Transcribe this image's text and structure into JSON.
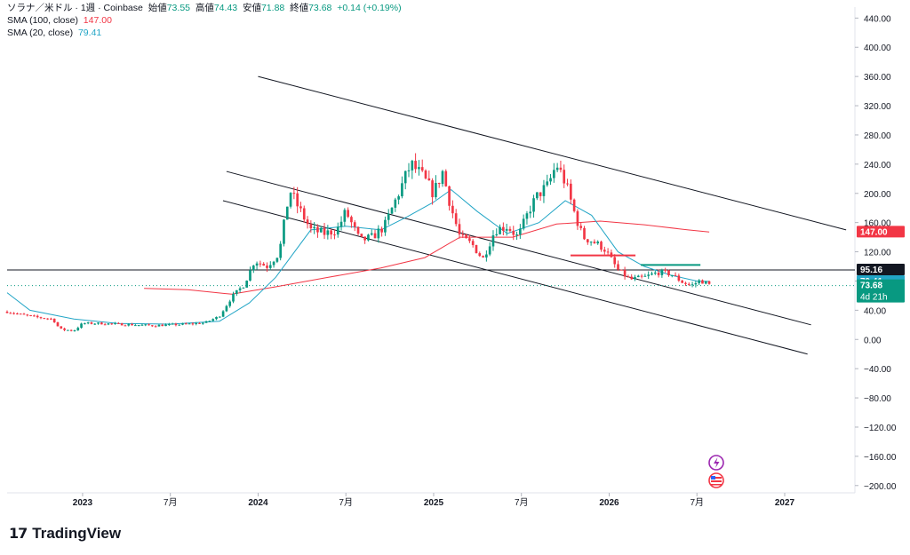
{
  "legend": {
    "symbol": "ソラナ／米ドル · 1週 · Coinbase",
    "open_label": "始値",
    "open": "73.55",
    "high_label": "高値",
    "high": "74.43",
    "low_label": "安値",
    "low": "71.88",
    "close_label": "終値",
    "close": "73.68",
    "change": "+0.14 (+0.19%)",
    "sma100_label": "SMA (100, close)",
    "sma100_value": "147.00",
    "sma20_label": "SMA (20, close)",
    "sma20_value": "79.41"
  },
  "brand": {
    "name": "TradingView"
  },
  "colors": {
    "up": "#089981",
    "down": "#f23645",
    "sma100": "#f23645",
    "sma20": "#22a5c6",
    "channel": "#131722"
  },
  "chart_data": {
    "type": "candlestick",
    "symbol": "ソラナ／米ドル",
    "interval": "1週",
    "exchange": "Coinbase",
    "y_ticks": [
      "440.00",
      "400.00",
      "360.00",
      "320.00",
      "280.00",
      "240.00",
      "200.00",
      "160.00",
      "120.00",
      "80.00",
      "40.00",
      "0.00",
      "−40.00",
      "−80.00",
      "−120.00",
      "−160.00",
      "−200.00"
    ],
    "y_tick_values": [
      440,
      400,
      360,
      320,
      280,
      240,
      200,
      160,
      120,
      80,
      40,
      0,
      -40,
      -80,
      -120,
      -160,
      -200
    ],
    "ylim": [
      -210,
      455
    ],
    "x_ticks": [
      {
        "label": "2023",
        "t": 2023.0
      },
      {
        "label": "7月",
        "t": 2023.5
      },
      {
        "label": "2024",
        "t": 2024.0
      },
      {
        "label": "7月",
        "t": 2024.5
      },
      {
        "label": "2025",
        "t": 2025.0
      },
      {
        "label": "7月",
        "t": 2025.5
      },
      {
        "label": "2026",
        "t": 2026.0
      },
      {
        "label": "7月",
        "t": 2026.5
      },
      {
        "label": "2027",
        "t": 2027.0
      }
    ],
    "xlim": [
      2022.57,
      2027.4
    ],
    "price_path": [
      [
        2022.57,
        38
      ],
      [
        2022.65,
        34
      ],
      [
        2022.75,
        30
      ],
      [
        2022.83,
        28
      ],
      [
        2022.87,
        14
      ],
      [
        2022.95,
        12
      ],
      [
        2023.0,
        22
      ],
      [
        2023.1,
        22
      ],
      [
        2023.2,
        21
      ],
      [
        2023.3,
        20
      ],
      [
        2023.4,
        19
      ],
      [
        2023.5,
        20
      ],
      [
        2023.6,
        21
      ],
      [
        2023.7,
        23
      ],
      [
        2023.78,
        32
      ],
      [
        2023.85,
        58
      ],
      [
        2023.92,
        75
      ],
      [
        2023.98,
        108
      ],
      [
        2024.05,
        100
      ],
      [
        2024.12,
        118
      ],
      [
        2024.18,
        205
      ],
      [
        2024.22,
        185
      ],
      [
        2024.3,
        150
      ],
      [
        2024.38,
        145
      ],
      [
        2024.45,
        150
      ],
      [
        2024.5,
        175
      ],
      [
        2024.58,
        135
      ],
      [
        2024.65,
        140
      ],
      [
        2024.72,
        155
      ],
      [
        2024.8,
        200
      ],
      [
        2024.87,
        240
      ],
      [
        2024.93,
        225
      ],
      [
        2025.0,
        200
      ],
      [
        2025.05,
        230
      ],
      [
        2025.1,
        180
      ],
      [
        2025.15,
        140
      ],
      [
        2025.22,
        130
      ],
      [
        2025.28,
        110
      ],
      [
        2025.35,
        150
      ],
      [
        2025.42,
        155
      ],
      [
        2025.48,
        140
      ],
      [
        2025.55,
        180
      ],
      [
        2025.6,
        200
      ],
      [
        2025.65,
        210
      ],
      [
        2025.7,
        240
      ],
      [
        2025.75,
        215
      ],
      [
        2025.8,
        175
      ],
      [
        2025.85,
        140
      ],
      [
        2025.9,
        135
      ],
      [
        2025.97,
        125
      ],
      [
        2026.05,
        95
      ],
      [
        2026.12,
        82
      ],
      [
        2026.2,
        85
      ],
      [
        2026.28,
        92
      ],
      [
        2026.35,
        90
      ],
      [
        2026.42,
        78
      ],
      [
        2026.47,
        74
      ],
      [
        2026.52,
        81
      ],
      [
        2026.58,
        73.68
      ]
    ],
    "last_close": 73.68,
    "series": [
      {
        "name": "SMA (100, close)",
        "value": "147.00",
        "path": [
          [
            2023.35,
            70
          ],
          [
            2023.6,
            68
          ],
          [
            2023.85,
            62
          ],
          [
            2024.1,
            72
          ],
          [
            2024.4,
            85
          ],
          [
            2024.7,
            98
          ],
          [
            2024.95,
            112
          ],
          [
            2025.15,
            140
          ],
          [
            2025.45,
            140
          ],
          [
            2025.7,
            158
          ],
          [
            2025.95,
            162
          ],
          [
            2026.2,
            157
          ],
          [
            2026.45,
            150
          ],
          [
            2026.57,
            147
          ]
        ]
      },
      {
        "name": "SMA (20, close)",
        "value": "79.41",
        "path": [
          [
            2022.57,
            64
          ],
          [
            2022.7,
            40
          ],
          [
            2022.95,
            28
          ],
          [
            2023.2,
            22
          ],
          [
            2023.5,
            21
          ],
          [
            2023.78,
            25
          ],
          [
            2023.95,
            50
          ],
          [
            2024.1,
            85
          ],
          [
            2024.3,
            150
          ],
          [
            2024.5,
            155
          ],
          [
            2024.7,
            150
          ],
          [
            2024.85,
            168
          ],
          [
            2025.0,
            188
          ],
          [
            2025.1,
            205
          ],
          [
            2025.25,
            175
          ],
          [
            2025.42,
            145
          ],
          [
            2025.6,
            160
          ],
          [
            2025.75,
            190
          ],
          [
            2025.9,
            170
          ],
          [
            2026.05,
            120
          ],
          [
            2026.2,
            100
          ],
          [
            2026.35,
            88
          ],
          [
            2026.5,
            80
          ],
          [
            2026.57,
            79.41
          ]
        ]
      }
    ],
    "channel_lines": [
      [
        [
          2024.0,
          360
        ],
        [
          2027.35,
          150
        ]
      ],
      [
        [
          2023.82,
          230
        ],
        [
          2027.15,
          20
        ]
      ],
      [
        [
          2023.8,
          190
        ],
        [
          2027.13,
          -20
        ]
      ]
    ],
    "hline": 95.16,
    "markers": [
      {
        "color": "#f23645",
        "y": 115,
        "x0": 2025.78,
        "x1": 2026.15
      },
      {
        "color": "#089981",
        "y": 102,
        "x0": 2026.18,
        "x1": 2026.52
      }
    ],
    "price_labels": [
      {
        "text": "147.00",
        "y": 147.0,
        "color": "#f23645",
        "text_color": "#ffffff"
      },
      {
        "text": "95.16",
        "y": 95.16,
        "color": "#131722",
        "text_color": "#ffffff"
      },
      {
        "text": "79.41",
        "y": 79.41,
        "color": "#22a5c6",
        "text_color": "#ffffff"
      },
      {
        "text": "73.68",
        "y": 73.68,
        "color": "#089981",
        "text_color": "#ffffff",
        "sub": "4d 21h"
      }
    ]
  }
}
